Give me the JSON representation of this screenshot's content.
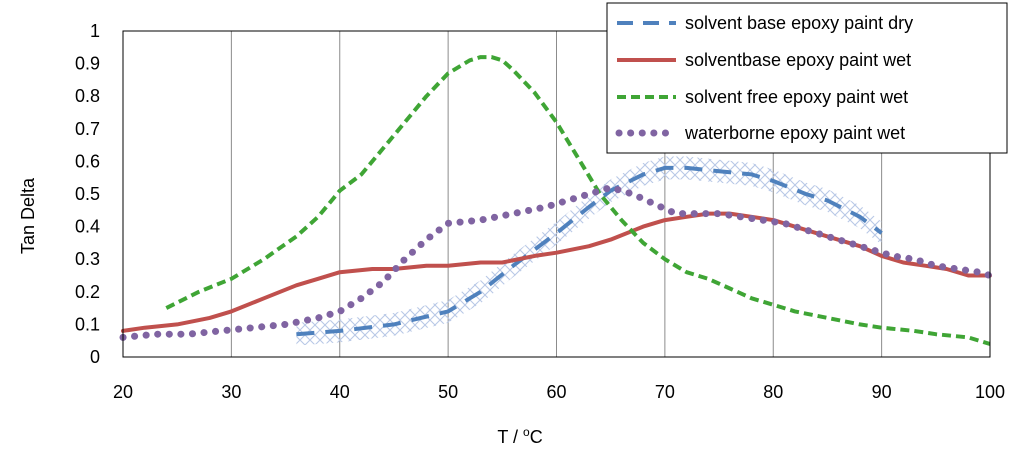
{
  "chart_data": {
    "type": "line",
    "title": "",
    "xlabel": "T / °C",
    "xlabel_parts": {
      "prefix": "T / ",
      "sup": "o",
      "unit": "C"
    },
    "ylabel": "Tan Delta",
    "xlim": [
      20,
      100
    ],
    "ylim": [
      0,
      1
    ],
    "xticks": [
      20,
      30,
      40,
      50,
      60,
      70,
      80,
      90,
      100
    ],
    "yticks": [
      0,
      0.1,
      0.2,
      0.3,
      0.4,
      0.5,
      0.6,
      0.7,
      0.8,
      0.9,
      1
    ],
    "ytick_labels": [
      "0",
      "0.1",
      "0.2",
      "0.3",
      "0.4",
      "0.5",
      "0.6",
      "0.7",
      "0.8",
      "0.9",
      "1"
    ],
    "grid": "vertical",
    "legend_position": "top-right",
    "series": [
      {
        "name": "solvent base epoxy paint dry",
        "color": "#4F81BD",
        "style": "dashed",
        "x": [
          36,
          40,
          45,
          50,
          53,
          56,
          60,
          63,
          65,
          68,
          70,
          72,
          75,
          78,
          80,
          83,
          85,
          88,
          90
        ],
        "y": [
          0.07,
          0.08,
          0.1,
          0.14,
          0.2,
          0.28,
          0.38,
          0.46,
          0.51,
          0.56,
          0.58,
          0.58,
          0.57,
          0.56,
          0.54,
          0.5,
          0.48,
          0.43,
          0.38
        ]
      },
      {
        "name": "solventbase epoxy paint wet",
        "color": "#C0504D",
        "style": "solid",
        "x": [
          20,
          22,
          25,
          28,
          30,
          33,
          36,
          38,
          40,
          43,
          45,
          48,
          50,
          53,
          55,
          58,
          60,
          63,
          65,
          68,
          70,
          72,
          74,
          76,
          78,
          80,
          83,
          85,
          88,
          90,
          92,
          94,
          96,
          98,
          100
        ],
        "y": [
          0.08,
          0.09,
          0.1,
          0.12,
          0.14,
          0.18,
          0.22,
          0.24,
          0.26,
          0.27,
          0.27,
          0.28,
          0.28,
          0.29,
          0.29,
          0.31,
          0.32,
          0.34,
          0.36,
          0.4,
          0.42,
          0.43,
          0.44,
          0.44,
          0.43,
          0.42,
          0.39,
          0.37,
          0.34,
          0.31,
          0.29,
          0.28,
          0.27,
          0.25,
          0.25
        ]
      },
      {
        "name": "solvent free epoxy paint wet",
        "color": "#3FA535",
        "style": "dashed",
        "x": [
          24,
          27,
          30,
          33,
          36,
          38,
          40,
          42,
          44,
          46,
          48,
          50,
          52,
          53,
          54,
          55,
          56,
          58,
          60,
          62,
          64,
          66,
          68,
          70,
          72,
          74,
          76,
          78,
          80,
          82,
          85,
          88,
          90,
          93,
          95,
          98,
          100
        ],
        "y": [
          0.15,
          0.2,
          0.24,
          0.3,
          0.37,
          0.43,
          0.51,
          0.56,
          0.64,
          0.72,
          0.8,
          0.87,
          0.91,
          0.92,
          0.92,
          0.91,
          0.88,
          0.81,
          0.72,
          0.61,
          0.5,
          0.42,
          0.35,
          0.3,
          0.26,
          0.24,
          0.21,
          0.18,
          0.16,
          0.14,
          0.12,
          0.1,
          0.09,
          0.08,
          0.07,
          0.06,
          0.04
        ]
      },
      {
        "name": "waterborne epoxy paint wet",
        "color": "#8064A2",
        "style": "dotted",
        "x": [
          20,
          23,
          26,
          29,
          32,
          35,
          38,
          40,
          42,
          44,
          46,
          48,
          50,
          53,
          56,
          59,
          62,
          65,
          67,
          69,
          71,
          73,
          75,
          77,
          79,
          81,
          83,
          85,
          87,
          89,
          91,
          93,
          95,
          97,
          99,
          100
        ],
        "y": [
          0.06,
          0.07,
          0.07,
          0.08,
          0.09,
          0.1,
          0.12,
          0.14,
          0.18,
          0.23,
          0.3,
          0.36,
          0.41,
          0.42,
          0.44,
          0.46,
          0.49,
          0.52,
          0.5,
          0.47,
          0.44,
          0.44,
          0.44,
          0.43,
          0.42,
          0.41,
          0.39,
          0.37,
          0.35,
          0.33,
          0.31,
          0.3,
          0.28,
          0.27,
          0.26,
          0.25
        ]
      }
    ]
  }
}
